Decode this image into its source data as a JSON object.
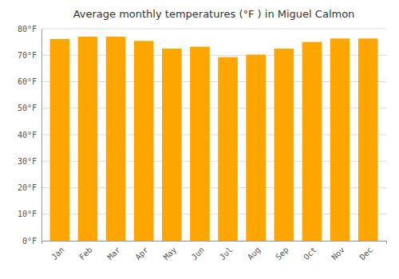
{
  "chart_data": {
    "type": "bar",
    "title": "Average monthly temperatures (°F ) in Miguel Calmon",
    "categories": [
      "Jan",
      "Feb",
      "Mar",
      "Apr",
      "May",
      "Jun",
      "Jul",
      "Aug",
      "Sep",
      "Oct",
      "Nov",
      "Dec"
    ],
    "values": [
      76.1,
      77.0,
      77.0,
      75.4,
      72.5,
      73.2,
      69.3,
      70.2,
      72.5,
      75.0,
      76.3,
      76.3
    ],
    "color": "#FFA500",
    "ylim": [
      0,
      80
    ],
    "yticks": [
      {
        "value": 0,
        "label": "0°F"
      },
      {
        "value": 10,
        "label": "10°F"
      },
      {
        "value": 20,
        "label": "20°F"
      },
      {
        "value": 30,
        "label": "30°F"
      },
      {
        "value": 40,
        "label": "40°F"
      },
      {
        "value": 50,
        "label": "50°F"
      },
      {
        "value": 60,
        "label": "60°F"
      },
      {
        "value": 70,
        "label": "70°F"
      },
      {
        "value": 80,
        "label": "80°F"
      }
    ],
    "grid": true
  }
}
